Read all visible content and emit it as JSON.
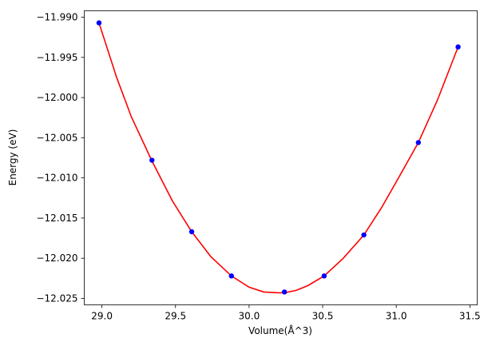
{
  "chart_data": {
    "type": "scatter",
    "title": "",
    "xlabel": "Volume(Å^3)",
    "ylabel": "Energy (eV)",
    "xlim": [
      28.88,
      31.55
    ],
    "ylim": [
      -12.0258,
      -11.9892
    ],
    "xticks": [
      29.0,
      29.5,
      30.0,
      30.5,
      31.0,
      31.5
    ],
    "xtick_labels": [
      "29.0",
      "29.5",
      "30.0",
      "30.5",
      "31.0",
      "31.5"
    ],
    "yticks": [
      -11.99,
      -11.995,
      -12.0,
      -12.005,
      -12.01,
      -12.015,
      -12.02,
      -12.025
    ],
    "ytick_labels": [
      "−11.990",
      "−11.995",
      "−12.000",
      "−12.005",
      "−12.010",
      "−12.015",
      "−12.020",
      "−12.025"
    ],
    "grid": false,
    "legend": null,
    "series": [
      {
        "kind": "points",
        "color": "#0000ff",
        "x": [
          28.98,
          29.34,
          29.61,
          29.88,
          30.24,
          30.51,
          30.78,
          31.15,
          31.42
        ],
        "y": [
          -11.9907,
          -12.0078,
          -12.0167,
          -12.0222,
          -12.0242,
          -12.0222,
          -12.0171,
          -12.0056,
          -11.9937
        ]
      },
      {
        "kind": "fit",
        "color": "#ff0000",
        "x": [
          28.98,
          29.1,
          29.2,
          29.34,
          29.48,
          29.61,
          29.74,
          29.88,
          30.0,
          30.1,
          30.2,
          30.24,
          30.32,
          30.4,
          30.51,
          30.64,
          30.78,
          30.9,
          31.0,
          31.15,
          31.28,
          31.42
        ],
        "y": [
          -11.9907,
          -11.9975,
          -12.0024,
          -12.0079,
          -12.0129,
          -12.0167,
          -12.0198,
          -12.0222,
          -12.0236,
          -12.0242,
          -12.0243,
          -12.0243,
          -12.024,
          -12.0234,
          -12.0222,
          -12.02,
          -12.0171,
          -12.0137,
          -12.0105,
          -12.0056,
          -12.0003,
          -11.9937
        ]
      }
    ]
  }
}
